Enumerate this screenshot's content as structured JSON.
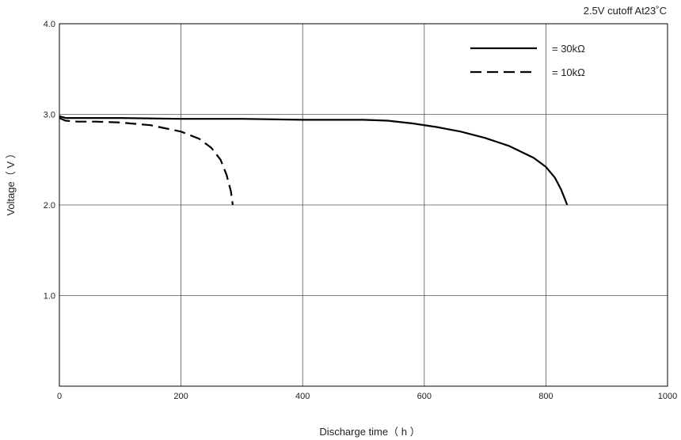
{
  "chart_data": {
    "type": "line",
    "annotation": "2.5V cutoff At23˚C",
    "xlabel": "Discharge time（ h ）",
    "ylabel": "Voltage（ V ）",
    "xlim": [
      0,
      1000
    ],
    "ylim": [
      0,
      4.0
    ],
    "x_ticks": [
      "0",
      "200",
      "400",
      "600",
      "800",
      "1000"
    ],
    "y_ticks": [
      "1.0",
      "2.0",
      "3.0",
      "4.0"
    ],
    "grid": true,
    "legend_position": "top-right",
    "series": [
      {
        "name": "= 30kΩ",
        "style": "solid",
        "color": "#000000",
        "x": [
          0,
          10,
          50,
          100,
          200,
          300,
          400,
          500,
          540,
          580,
          620,
          660,
          700,
          740,
          780,
          800,
          815,
          825,
          835
        ],
        "y": [
          2.98,
          2.96,
          2.96,
          2.96,
          2.95,
          2.95,
          2.94,
          2.94,
          2.93,
          2.9,
          2.86,
          2.81,
          2.74,
          2.65,
          2.52,
          2.42,
          2.3,
          2.17,
          2.0
        ]
      },
      {
        "name": "= 10kΩ",
        "style": "dashed",
        "color": "#000000",
        "x": [
          0,
          10,
          30,
          60,
          100,
          150,
          200,
          230,
          250,
          265,
          275,
          282,
          285
        ],
        "y": [
          2.96,
          2.93,
          2.92,
          2.92,
          2.91,
          2.88,
          2.81,
          2.73,
          2.63,
          2.5,
          2.33,
          2.15,
          2.0
        ]
      }
    ]
  }
}
